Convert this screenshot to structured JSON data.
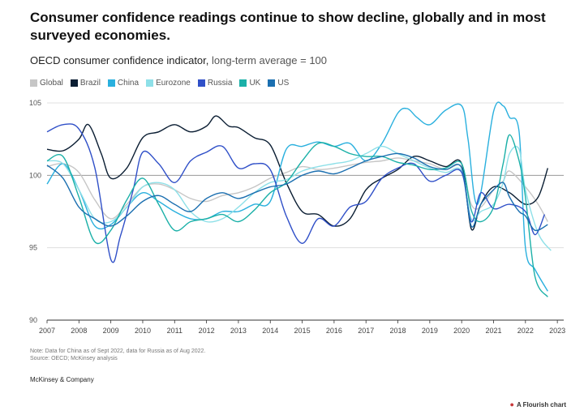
{
  "title": "Consumer confidence readings continue to show decline, globally and in most surveyed economies.",
  "subtitle": "OECD consumer confidence indicator,",
  "subtitle_unit": "long-term average = 100",
  "note_line1": "Note: Data for China as of Sept 2022, data for Russia as of Aug 2022.",
  "note_line2": "Source: OECD; McKinsey analysis",
  "brand": "McKinsey & Company",
  "flourish_label": "A Flourish chart",
  "flourish_icon": "flourish-logo-icon",
  "chart_data": {
    "type": "line",
    "ylim": [
      90,
      105
    ],
    "xlim": [
      2007,
      2023.2
    ],
    "y_ticks": [
      90,
      95,
      100,
      105
    ],
    "x_ticks": [
      2007,
      2008,
      2009,
      2010,
      2011,
      2012,
      2013,
      2014,
      2015,
      2016,
      2017,
      2018,
      2019,
      2020,
      2021,
      2022,
      2023
    ],
    "grid": true,
    "legend_position": "top-left",
    "series": [
      {
        "name": "Global",
        "color": "#c6c6c6",
        "x": [
          2007,
          2007.5,
          2008,
          2008.5,
          2009,
          2009.5,
          2010,
          2010.5,
          2011,
          2011.5,
          2012,
          2012.5,
          2013,
          2013.5,
          2014,
          2014.5,
          2015,
          2015.5,
          2016,
          2016.5,
          2017,
          2017.5,
          2018,
          2018.5,
          2019,
          2019.5,
          2020,
          2020.3,
          2020.6,
          2021,
          2021.3,
          2021.5,
          2022,
          2022.4,
          2022.7
        ],
        "values": [
          100.6,
          100.8,
          100.2,
          98.3,
          97.0,
          98.0,
          99.2,
          99.4,
          99.0,
          98.4,
          98.2,
          98.6,
          98.8,
          99.2,
          99.8,
          100.2,
          100.6,
          100.4,
          100.5,
          100.7,
          100.9,
          101.0,
          101.2,
          101.0,
          100.8,
          100.4,
          100.6,
          98.0,
          97.8,
          99.0,
          99.6,
          100.3,
          99.2,
          98.0,
          96.8
        ]
      },
      {
        "name": "Brazil",
        "color": "#0b1e33",
        "x": [
          2007,
          2007.5,
          2008,
          2008.3,
          2008.7,
          2009,
          2009.5,
          2010,
          2010.5,
          2011,
          2011.5,
          2012,
          2012.3,
          2012.7,
          2013,
          2013.5,
          2014,
          2014.5,
          2015,
          2015.5,
          2016,
          2016.5,
          2017,
          2017.5,
          2018,
          2018.5,
          2019,
          2019.5,
          2020,
          2020.3,
          2020.6,
          2021,
          2021.5,
          2022,
          2022.4,
          2022.7
        ],
        "values": [
          101.8,
          101.7,
          102.5,
          103.5,
          101.5,
          99.8,
          100.5,
          102.6,
          103.0,
          103.5,
          103.0,
          103.4,
          104.1,
          103.4,
          103.3,
          102.6,
          102.1,
          99.5,
          97.5,
          97.3,
          96.5,
          97.0,
          99.0,
          99.8,
          100.4,
          101.3,
          101.0,
          100.6,
          100.8,
          96.3,
          98.0,
          99.2,
          98.8,
          98.0,
          98.5,
          100.5
        ]
      },
      {
        "name": "China",
        "color": "#2ab0de",
        "x": [
          2007,
          2007.5,
          2008,
          2008.5,
          2009,
          2009.5,
          2010,
          2010.5,
          2011,
          2011.5,
          2012,
          2012.5,
          2013,
          2013.5,
          2014,
          2014.5,
          2015,
          2015.5,
          2016,
          2016.5,
          2017,
          2017.5,
          2018,
          2018.3,
          2018.6,
          2019,
          2019.5,
          2020,
          2020.2,
          2020.5,
          2021,
          2021.3,
          2021.5,
          2021.8,
          2022,
          2022.3,
          2022.7
        ],
        "values": [
          99.4,
          100.8,
          99.0,
          96.5,
          96.6,
          97.8,
          98.8,
          98.2,
          97.5,
          97.0,
          97.0,
          97.5,
          97.5,
          98.0,
          98.2,
          101.8,
          102.0,
          102.3,
          102.0,
          102.2,
          101.0,
          102.2,
          104.3,
          104.6,
          104.0,
          103.5,
          104.5,
          104.8,
          102.5,
          98.0,
          104.4,
          104.8,
          104.0,
          103.0,
          95.0,
          93.5,
          92.0
        ]
      },
      {
        "name": "Eurozone",
        "color": "#8ee0e8",
        "x": [
          2007,
          2007.5,
          2008,
          2008.5,
          2009,
          2009.5,
          2010,
          2010.5,
          2011,
          2011.5,
          2012,
          2012.5,
          2013,
          2013.5,
          2014,
          2014.5,
          2015,
          2015.5,
          2016,
          2016.5,
          2017,
          2017.5,
          2018,
          2018.5,
          2019,
          2019.5,
          2020,
          2020.3,
          2020.6,
          2021,
          2021.3,
          2021.5,
          2021.8,
          2022,
          2022.4,
          2022.8
        ],
        "values": [
          101.0,
          100.8,
          99.0,
          97.0,
          96.8,
          97.8,
          99.2,
          99.5,
          99.0,
          97.5,
          96.8,
          97.0,
          97.8,
          98.8,
          99.5,
          99.7,
          100.3,
          100.6,
          100.8,
          101.0,
          101.5,
          102.0,
          101.5,
          101.0,
          100.5,
          100.2,
          100.3,
          97.0,
          97.5,
          98.0,
          99.5,
          101.5,
          101.8,
          99.0,
          96.0,
          94.8
        ]
      },
      {
        "name": "Russia",
        "color": "#3050c8",
        "x": [
          2007,
          2007.5,
          2008,
          2008.5,
          2009,
          2009.3,
          2009.7,
          2010,
          2010.5,
          2011,
          2011.5,
          2012,
          2012.5,
          2013,
          2013.5,
          2014,
          2014.5,
          2015,
          2015.5,
          2016,
          2016.5,
          2017,
          2017.5,
          2018,
          2018.5,
          2019,
          2019.5,
          2020,
          2020.3,
          2020.6,
          2021,
          2021.5,
          2022,
          2022.3,
          2022.6
        ],
        "values": [
          103.0,
          103.5,
          103.2,
          100.5,
          94.2,
          95.8,
          99.0,
          101.6,
          100.8,
          99.5,
          101.0,
          101.6,
          102.0,
          100.5,
          100.8,
          100.4,
          97.2,
          95.3,
          97.0,
          96.5,
          97.8,
          98.2,
          99.8,
          100.5,
          100.8,
          99.6,
          100.0,
          100.2,
          96.8,
          98.8,
          97.7,
          98.0,
          97.5,
          95.9,
          97.3
        ]
      },
      {
        "name": "UK",
        "color": "#1bb0a8",
        "x": [
          2007,
          2007.5,
          2008,
          2008.5,
          2009,
          2009.5,
          2010,
          2010.5,
          2011,
          2011.5,
          2012,
          2012.5,
          2013,
          2013.5,
          2014,
          2014.5,
          2015,
          2015.5,
          2016,
          2016.5,
          2017,
          2017.5,
          2018,
          2018.5,
          2019,
          2019.5,
          2020,
          2020.3,
          2020.6,
          2021,
          2021.3,
          2021.5,
          2021.8,
          2022,
          2022.3,
          2022.7
        ],
        "values": [
          101.0,
          101.3,
          98.5,
          95.4,
          96.2,
          98.3,
          99.8,
          98.0,
          96.2,
          96.8,
          97.0,
          97.3,
          96.8,
          97.6,
          98.8,
          99.5,
          101.0,
          102.2,
          102.0,
          101.5,
          101.3,
          101.3,
          100.9,
          100.7,
          100.4,
          100.5,
          100.8,
          97.6,
          96.8,
          97.8,
          100.8,
          102.8,
          101.0,
          98.5,
          93.0,
          91.6
        ]
      },
      {
        "name": "US",
        "color": "#1b6fb0",
        "x": [
          2007,
          2007.5,
          2008,
          2008.5,
          2009,
          2009.5,
          2010,
          2010.5,
          2011,
          2011.5,
          2012,
          2012.5,
          2013,
          2013.5,
          2014,
          2014.5,
          2015,
          2015.5,
          2016,
          2016.5,
          2017,
          2017.5,
          2018,
          2018.5,
          2019,
          2019.5,
          2020,
          2020.3,
          2020.6,
          2021,
          2021.3,
          2021.5,
          2021.8,
          2022,
          2022.3,
          2022.7
        ],
        "values": [
          100.7,
          99.8,
          97.8,
          97.0,
          96.5,
          97.2,
          98.2,
          98.6,
          98.0,
          97.5,
          98.4,
          98.8,
          98.4,
          98.8,
          99.2,
          99.4,
          100.0,
          100.3,
          100.1,
          100.5,
          101.0,
          101.3,
          101.5,
          101.2,
          100.6,
          100.4,
          100.5,
          96.5,
          98.0,
          99.0,
          99.5,
          98.5,
          97.5,
          97.2,
          96.2,
          96.6
        ]
      }
    ]
  }
}
